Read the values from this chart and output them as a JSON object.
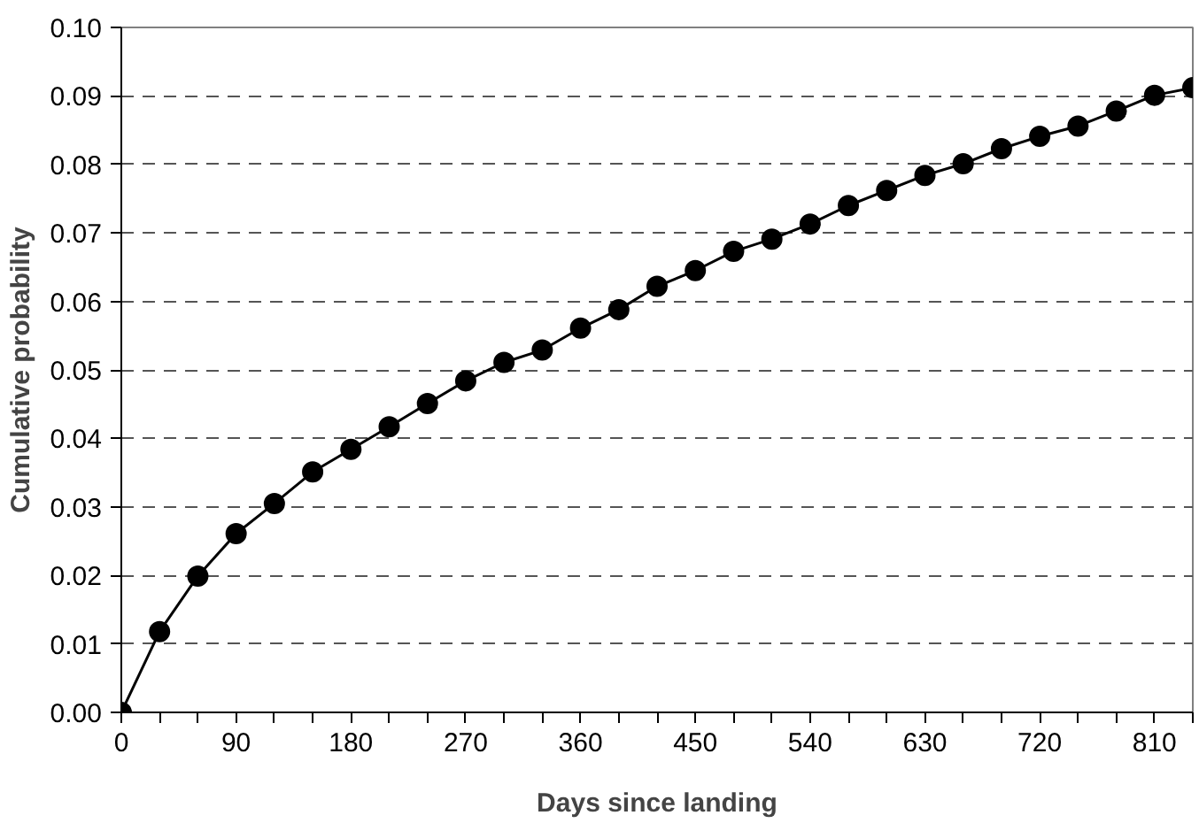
{
  "chart_data": {
    "type": "line",
    "xlabel": "Days since landing",
    "ylabel": "Cumulative probability",
    "x": [
      0,
      30,
      60,
      90,
      120,
      150,
      180,
      210,
      240,
      270,
      300,
      330,
      360,
      390,
      420,
      450,
      480,
      510,
      540,
      570,
      600,
      630,
      660,
      690,
      720,
      750,
      780,
      810,
      840
    ],
    "series": [
      {
        "color": "#000000",
        "values": [
          0,
          0.0118,
          0.0199,
          0.0261,
          0.0305,
          0.0351,
          0.0384,
          0.0417,
          0.0451,
          0.0484,
          0.0511,
          0.0529,
          0.0561,
          0.0588,
          0.0622,
          0.0645,
          0.0673,
          0.0691,
          0.0713,
          0.074,
          0.0762,
          0.0784,
          0.0801,
          0.0823,
          0.0841,
          0.0856,
          0.0878,
          0.0901,
          0.0912
        ]
      }
    ],
    "xlim": [
      0,
      840
    ],
    "xticks": [
      0,
      {
        "value": 30,
        "label": null
      },
      {
        "value": 60,
        "label": null
      },
      90,
      {
        "value": 120,
        "label": null
      },
      {
        "value": 150,
        "label": null
      },
      180,
      {
        "value": 210,
        "label": null
      },
      {
        "value": 240,
        "label": null
      },
      270,
      {
        "value": 300,
        "label": null
      },
      {
        "value": 330,
        "label": null
      },
      360,
      {
        "value": 390,
        "label": null
      },
      {
        "value": 420,
        "label": null
      },
      450,
      {
        "value": 480,
        "label": null
      },
      {
        "value": 510,
        "label": null
      },
      540,
      {
        "value": 570,
        "label": null
      },
      {
        "value": 600,
        "label": null
      },
      630,
      {
        "value": 660,
        "label": null
      },
      {
        "value": 690,
        "label": null
      },
      720,
      {
        "value": 750,
        "label": null
      },
      {
        "value": 780,
        "label": null
      },
      810,
      {
        "value": 840,
        "label": null
      }
    ],
    "ylim": [
      0,
      0.1
    ],
    "yticks": [
      {
        "value": 0,
        "label": "0.00"
      },
      {
        "value": 0.01,
        "label": "0.01"
      },
      {
        "value": 0.02,
        "label": "0.02"
      },
      {
        "value": 0.03,
        "label": "0.03"
      },
      {
        "value": 0.04,
        "label": "0.04"
      },
      {
        "value": 0.05,
        "label": "0.05"
      },
      {
        "value": 0.06,
        "label": "0.06"
      },
      {
        "value": 0.07,
        "label": "0.07"
      },
      {
        "value": 0.08,
        "label": "0.08"
      },
      {
        "value": 0.09,
        "label": "0.09"
      },
      {
        "value": 0.1,
        "label": "0.10"
      }
    ],
    "grid": "y",
    "marker": "circle",
    "line_style": "solid"
  }
}
